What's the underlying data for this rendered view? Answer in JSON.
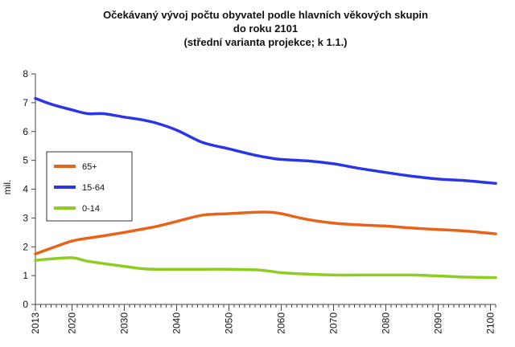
{
  "chart_data": {
    "type": "line",
    "title_lines": [
      "Očekávaný vývoj počtu obyvatel podle hlavních věkových skupin",
      "do roku 2101",
      "(střední varianta projekce; k 1.1.)"
    ],
    "xlabel": "",
    "ylabel": "mil.",
    "xlim": [
      2013,
      2101
    ],
    "ylim": [
      0,
      8
    ],
    "x_ticks": [
      "2013",
      "2020",
      "2030",
      "2040",
      "2050",
      "2060",
      "2070",
      "2080",
      "2090",
      "2100"
    ],
    "y_ticks": [
      "0",
      "1",
      "2",
      "3",
      "4",
      "5",
      "6",
      "7",
      "8"
    ],
    "grid": false,
    "legend_position": "left-middle",
    "x": [
      2013,
      2016,
      2020,
      2023,
      2026,
      2030,
      2033,
      2036,
      2040,
      2045,
      2050,
      2055,
      2058,
      2060,
      2065,
      2070,
      2075,
      2080,
      2085,
      2090,
      2095,
      2101
    ],
    "series": [
      {
        "name": "65+",
        "color": "#e8621a",
        "values": [
          1.75,
          1.95,
          2.2,
          2.3,
          2.38,
          2.5,
          2.6,
          2.7,
          2.88,
          3.1,
          3.15,
          3.2,
          3.2,
          3.15,
          2.95,
          2.82,
          2.76,
          2.72,
          2.65,
          2.6,
          2.55,
          2.45
        ]
      },
      {
        "name": "15-64",
        "color": "#2a35e6",
        "values": [
          7.15,
          6.95,
          6.75,
          6.62,
          6.62,
          6.5,
          6.42,
          6.3,
          6.05,
          5.62,
          5.4,
          5.18,
          5.08,
          5.03,
          4.98,
          4.88,
          4.72,
          4.58,
          4.45,
          4.35,
          4.3,
          4.2
        ]
      },
      {
        "name": "0-14",
        "color": "#8fcc22",
        "values": [
          1.53,
          1.58,
          1.62,
          1.5,
          1.42,
          1.32,
          1.25,
          1.22,
          1.22,
          1.22,
          1.22,
          1.2,
          1.15,
          1.1,
          1.05,
          1.02,
          1.02,
          1.02,
          1.02,
          0.99,
          0.95,
          0.93
        ]
      }
    ]
  }
}
